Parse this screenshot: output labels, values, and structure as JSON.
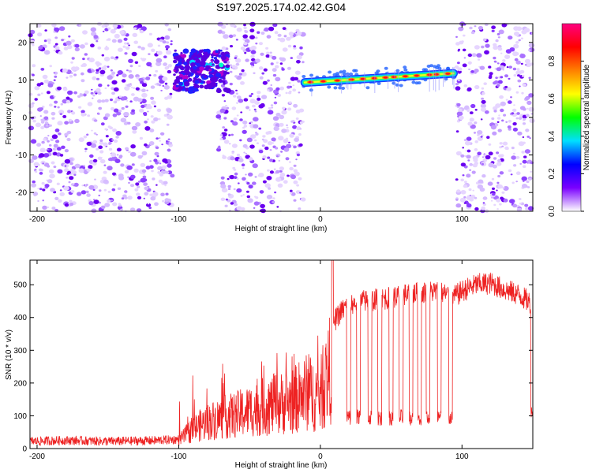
{
  "title": "S197.2025.174.02.42.G04",
  "chart_data": [
    {
      "type": "heatmap",
      "xlabel": "Height of straight line (km)",
      "ylabel": "Frequency (Hz)",
      "xlim": [
        -205,
        150
      ],
      "ylim": [
        -25,
        25
      ],
      "x_ticks": [
        -200,
        -100,
        0,
        100
      ],
      "y_ticks": [
        -20,
        -10,
        0,
        10,
        20
      ],
      "colorbar": {
        "label": "Normalized spectral amplitude",
        "range": [
          0,
          1
        ],
        "ticks": [
          0,
          0.2,
          0.4,
          0.6,
          0.8
        ],
        "tick_labels": [
          "0.0",
          "0.2",
          "0.4",
          "0.6",
          "0.8"
        ],
        "colors": [
          "#ffffff",
          "#7a00ff",
          "#0000ff",
          "#00e0ff",
          "#00ff00",
          "#ffff00",
          "#ff8000",
          "#ff0000",
          "#ff0080"
        ]
      },
      "noise_segments_km": [
        [
          -205,
          -104
        ],
        [
          -72,
          -12
        ],
        [
          96,
          150
        ]
      ],
      "features": [
        {
          "name": "blob",
          "x_range": [
            -103,
            -65
          ],
          "freq_range": [
            7,
            18
          ]
        },
        {
          "name": "trace",
          "x_range": [
            -12,
            96
          ],
          "freq_start": 9.3,
          "freq_end": 11.8
        }
      ],
      "grid": false
    },
    {
      "type": "line",
      "xlabel": "Height of straight line (km)",
      "ylabel": "SNR (10 * v/v)",
      "xlim": [
        -205,
        150
      ],
      "ylim": [
        0,
        575
      ],
      "x_ticks": [
        -200,
        -100,
        0,
        100
      ],
      "y_ticks": [
        0,
        100,
        200,
        300,
        400,
        500
      ],
      "color": "#ee2222",
      "x": [
        -205,
        -180,
        -150,
        -120,
        -100,
        -90,
        -80,
        -70,
        -60,
        -50,
        -40,
        -30,
        -20,
        -10,
        0,
        5,
        8,
        10,
        15,
        20,
        30,
        40,
        50,
        60,
        70,
        80,
        90,
        95,
        100,
        110,
        120,
        130,
        140,
        150
      ],
      "values": [
        22,
        25,
        22,
        24,
        28,
        70,
        95,
        110,
        120,
        135,
        150,
        160,
        170,
        200,
        190,
        260,
        300,
        390,
        420,
        440,
        450,
        455,
        460,
        470,
        475,
        480,
        470,
        465,
        480,
        500,
        505,
        485,
        470,
        440
      ],
      "dips_x": [
        20,
        27,
        35,
        42,
        50,
        57,
        64,
        70,
        76,
        84,
        92
      ],
      "dip_level": 95,
      "grid": false
    }
  ]
}
